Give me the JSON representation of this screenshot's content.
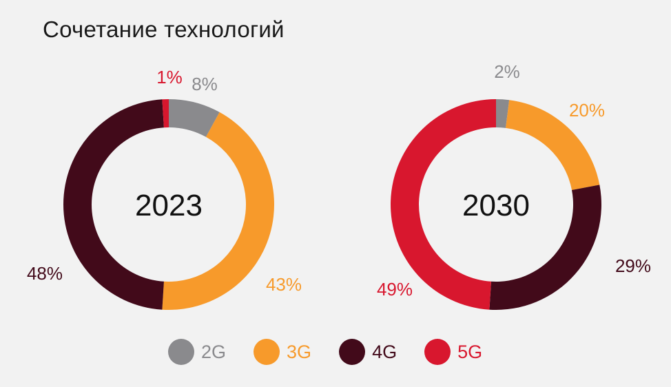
{
  "title": "Сочетание технологий",
  "colors": {
    "2G": "#8a8a8d",
    "3G": "#f79a2b",
    "4G": "#420a1a",
    "5G": "#d8172e"
  },
  "legend": [
    {
      "name": "2G",
      "label": "2G"
    },
    {
      "name": "3G",
      "label": "3G"
    },
    {
      "name": "4G",
      "label": "4G"
    },
    {
      "name": "5G",
      "label": "5G"
    }
  ],
  "chart_data": [
    {
      "type": "pie",
      "center_label": "2023",
      "slices": [
        {
          "name": "2G",
          "value": 8,
          "label": "8%"
        },
        {
          "name": "3G",
          "value": 43,
          "label": "43%"
        },
        {
          "name": "4G",
          "value": 48,
          "label": "48%"
        },
        {
          "name": "5G",
          "value": 1,
          "label": "1%"
        }
      ]
    },
    {
      "type": "pie",
      "center_label": "2030",
      "slices": [
        {
          "name": "2G",
          "value": 2,
          "label": "2%"
        },
        {
          "name": "3G",
          "value": 20,
          "label": "20%"
        },
        {
          "name": "4G",
          "value": 29,
          "label": "29%"
        },
        {
          "name": "5G",
          "value": 49,
          "label": "49%"
        }
      ]
    }
  ]
}
